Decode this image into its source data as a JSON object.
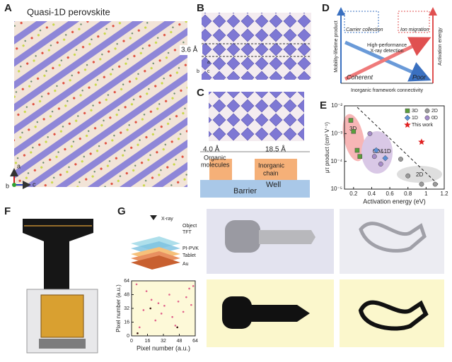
{
  "panels": {
    "A": {
      "letter": "A",
      "title": "Quasi-1D perovskite",
      "axes": [
        "a",
        "b",
        "c"
      ]
    },
    "B": {
      "letter": "B",
      "spacing": "3.6 Å",
      "axes": [
        "a",
        "b",
        "c"
      ]
    },
    "C": {
      "letter": "C",
      "spacing1": "4.0 Å",
      "spacing2": "18.5 Å",
      "organic": [
        "Organic",
        "molecules"
      ],
      "inorganic": [
        "Inorganic",
        "chain"
      ],
      "barrier": "Barrier",
      "well": "Well"
    },
    "D": {
      "letter": "D",
      "carrier": "Carrier collection",
      "ion": "Ion migration",
      "center": [
        "High-performance",
        "X-ray detection"
      ],
      "coherent": "Coherent",
      "poor": "Poor",
      "ylabel": "Mobility-lifetime product",
      "y2label": "Activation energy",
      "xlabel": "Inorganic framework connectivity"
    },
    "E": {
      "letter": "E"
    },
    "F": {
      "letter": "F"
    },
    "G": {
      "letter": "G",
      "layers": [
        "X-ray",
        "Object",
        "TFT",
        "PI-PVK",
        "Tablet",
        "Au"
      ]
    }
  },
  "chart_data": [
    {
      "type": "scatter",
      "xlabel": "Activation energy (eV)",
      "ylabel": "μτ product (cm² V⁻¹)",
      "xlim": [
        0.1,
        1.2
      ],
      "xticks": [
        0.2,
        0.4,
        0.6,
        0.8,
        1.0,
        1.2
      ],
      "ylim": [
        1e-05,
        0.01
      ],
      "yscale": "log",
      "yticks": [
        {
          "value": 1e-05,
          "label": "10⁻⁵"
        },
        {
          "value": 0.0001,
          "label": "10⁻⁴"
        },
        {
          "value": 0.001,
          "label": "10⁻³"
        },
        {
          "value": 0.01,
          "label": "10⁻²"
        }
      ],
      "regions": [
        "3D",
        "0D&1D",
        "2D"
      ],
      "legend": "upper right",
      "series": [
        {
          "name": "3D",
          "color": "#5a9e3c",
          "marker": "square",
          "x": [
            0.17,
            0.2,
            0.24,
            0.27
          ],
          "values": [
            0.003,
            0.0012,
            0.00025,
            0.00015
          ]
        },
        {
          "name": "2D",
          "color": "#9a9a9a",
          "marker": "circle",
          "x": [
            0.72,
            0.8,
            0.95,
            1.1
          ],
          "values": [
            0.00012,
            3e-05,
            1.5e-05,
            1.5e-05
          ]
        },
        {
          "name": "1D",
          "color": "#5b8fd6",
          "marker": "diamond",
          "x": [
            0.45,
            0.55
          ],
          "values": [
            0.00025,
            0.00013
          ]
        },
        {
          "name": "0D",
          "color": "#a58cc8",
          "marker": "circle",
          "x": [
            0.38,
            0.43,
            0.5
          ],
          "values": [
            0.001,
            0.00015,
            8e-05
          ]
        },
        {
          "name": "This work",
          "color": "#e02020",
          "marker": "star",
          "x": [
            0.95
          ],
          "values": [
            0.0005
          ]
        }
      ]
    },
    {
      "type": "scatter",
      "xlabel": "Pixel number (a.u.)",
      "ylabel": "Pixel number (a.u.)",
      "xlim": [
        0,
        64
      ],
      "xticks": [
        0,
        16,
        32,
        48,
        64
      ],
      "ylim": [
        0,
        64
      ],
      "yticks": [
        0,
        16,
        32,
        48,
        64
      ],
      "series": [
        {
          "color": "#e0608a",
          "marker": "dot",
          "x": [
            5,
            12,
            20,
            27,
            33,
            38,
            41,
            47,
            52,
            58,
            60,
            8,
            24,
            44,
            55,
            30,
            15,
            62
          ],
          "values": [
            60,
            30,
            42,
            38,
            35,
            48,
            22,
            40,
            28,
            55,
            36,
            10,
            18,
            12,
            45,
            26,
            52,
            58
          ]
        },
        {
          "color": "#3a1010",
          "marker": "dot",
          "x": [
            6,
            19,
            46
          ],
          "values": [
            3,
            32,
            10
          ]
        }
      ]
    }
  ]
}
